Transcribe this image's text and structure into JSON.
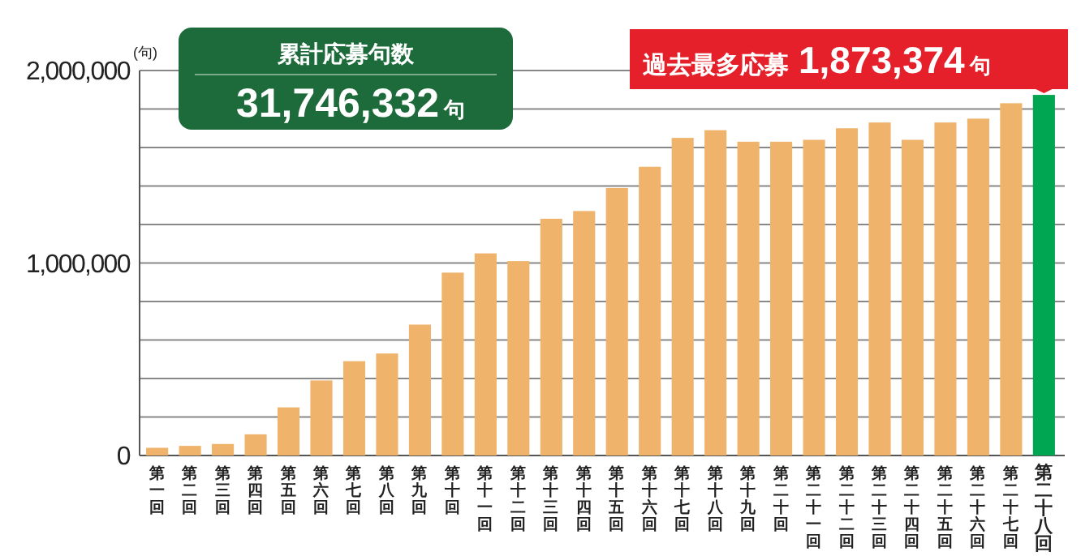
{
  "chart_data": {
    "type": "bar",
    "ylabel": "(句)",
    "categories": [
      "第一回",
      "第二回",
      "第三回",
      "第四回",
      "第五回",
      "第六回",
      "第七回",
      "第八回",
      "第九回",
      "第十回",
      "第十一回",
      "第十二回",
      "第十三回",
      "第十四回",
      "第十五回",
      "第十六回",
      "第十七回",
      "第十八回",
      "第十九回",
      "第二十回",
      "第二十一回",
      "第二十二回",
      "第二十三回",
      "第二十四回",
      "第二十五回",
      "第二十六回",
      "第二十七回",
      "第二十八回"
    ],
    "values": [
      40000,
      50000,
      60000,
      110000,
      250000,
      390000,
      490000,
      530000,
      680000,
      950000,
      1050000,
      1010000,
      1230000,
      1270000,
      1390000,
      1500000,
      1650000,
      1690000,
      1630000,
      1630000,
      1640000,
      1700000,
      1730000,
      1640000,
      1730000,
      1750000,
      1830000,
      1873374
    ],
    "colors": [
      "#f0b36b",
      "#f0b36b",
      "#f0b36b",
      "#f0b36b",
      "#f0b36b",
      "#f0b36b",
      "#f0b36b",
      "#f0b36b",
      "#f0b36b",
      "#f0b36b",
      "#f0b36b",
      "#f0b36b",
      "#f0b36b",
      "#f0b36b",
      "#f0b36b",
      "#f0b36b",
      "#f0b36b",
      "#f0b36b",
      "#f0b36b",
      "#f0b36b",
      "#f0b36b",
      "#f0b36b",
      "#f0b36b",
      "#f0b36b",
      "#f0b36b",
      "#f0b36b",
      "#f0b36b",
      "#00a651"
    ],
    "ylim": [
      0,
      2000000
    ],
    "yticks": [
      0,
      {
        "value": 200000,
        "label": null
      },
      {
        "value": 400000,
        "label": null
      },
      {
        "value": 600000,
        "label": null
      },
      {
        "value": 800000,
        "label": null
      },
      {
        "value": 1000000,
        "label": "1,000,000"
      },
      {
        "value": 1200000,
        "label": null
      },
      {
        "value": 1400000,
        "label": null
      },
      {
        "value": 1600000,
        "label": null
      },
      {
        "value": 1800000,
        "label": null
      },
      {
        "value": 2000000,
        "label": "2,000,000"
      }
    ],
    "grid": "y",
    "annotations": [
      "累計応募句数",
      "31,746,332句",
      {
        "text": "過去最多応募 1,873,374句",
        "x": "第二十八回",
        "y": 1873374
      }
    ]
  }
}
